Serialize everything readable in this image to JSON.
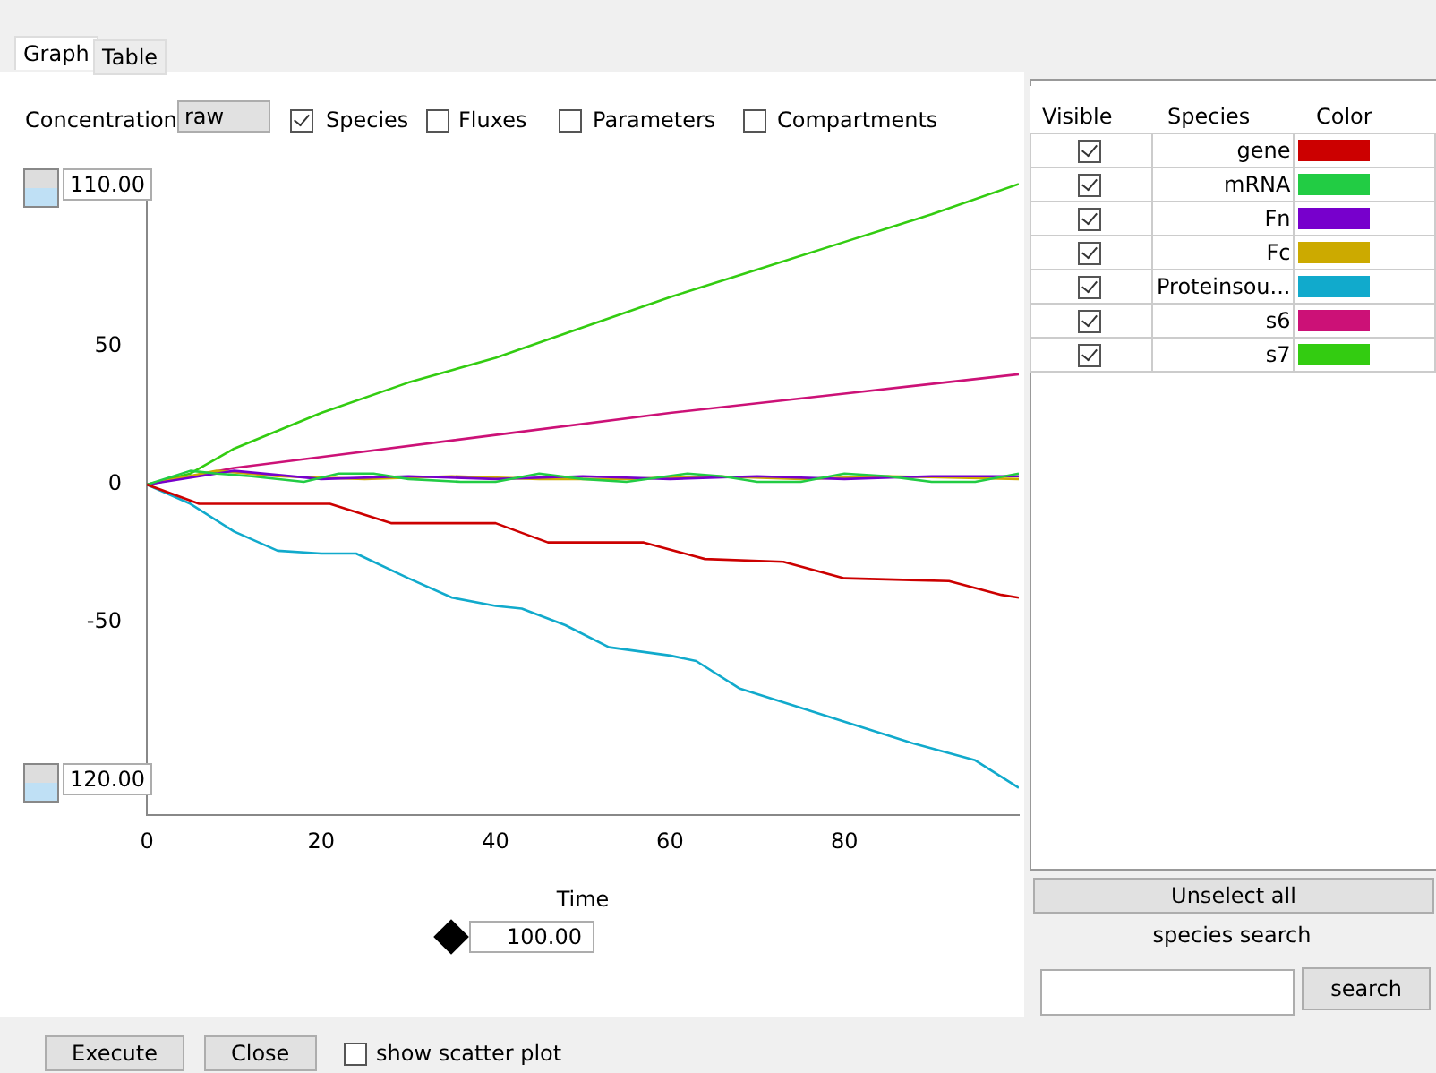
{
  "chart_data": {
    "type": "line",
    "xlabel": "Time",
    "xlim": [
      0,
      100
    ],
    "xticks": [
      0,
      20,
      40,
      60,
      80
    ],
    "ylim": [
      -120,
      110
    ],
    "yticks": [
      -50,
      0,
      50
    ],
    "grid": false,
    "legend": "right",
    "marker": "none",
    "line_style": "solid",
    "series": [
      {
        "name": "gene",
        "color": "#cc0000",
        "x": [
          0,
          6,
          21,
          28,
          40,
          46,
          57,
          64,
          73,
          80,
          92,
          98,
          100
        ],
        "values": [
          0,
          -7,
          -7,
          -14,
          -14,
          -21,
          -21,
          -27,
          -28,
          -34,
          -35,
          -40,
          -41
        ]
      },
      {
        "name": "mRNA",
        "color": "#22cc44",
        "x": [
          0,
          5,
          8,
          12,
          18,
          22,
          26,
          30,
          36,
          40,
          45,
          50,
          55,
          62,
          66,
          70,
          75,
          80,
          85,
          90,
          95,
          100
        ],
        "values": [
          0,
          5,
          4,
          3,
          1,
          4,
          4,
          2,
          1,
          1,
          4,
          2,
          1,
          4,
          3,
          1,
          1,
          4,
          3,
          1,
          1,
          4
        ]
      },
      {
        "name": "Fn",
        "color": "#7700cc",
        "x": [
          0,
          10,
          20,
          30,
          40,
          50,
          60,
          70,
          80,
          90,
          100
        ],
        "values": [
          0,
          5,
          2,
          3,
          2,
          3,
          2,
          3,
          2,
          3,
          3
        ]
      },
      {
        "name": "Fc",
        "color": "#ccaa00",
        "x": [
          0,
          8,
          15,
          25,
          35,
          45,
          55,
          65,
          75,
          85,
          100
        ],
        "values": [
          0,
          5,
          3,
          2,
          3,
          2,
          2,
          3,
          2,
          3,
          2
        ]
      },
      {
        "name": "Proteinsou...",
        "color": "#11aacc",
        "x": [
          0,
          5,
          10,
          15,
          20,
          24,
          30,
          35,
          40,
          43,
          48,
          53,
          60,
          63,
          68,
          75,
          80,
          88,
          95,
          100
        ],
        "values": [
          0,
          -7,
          -17,
          -24,
          -25,
          -25,
          -34,
          -41,
          -44,
          -45,
          -51,
          -59,
          -62,
          -64,
          -74,
          -81,
          -86,
          -94,
          -100,
          -110
        ]
      },
      {
        "name": "s6",
        "color": "#cc1177",
        "x": [
          0,
          10,
          20,
          40,
          60,
          80,
          100
        ],
        "values": [
          0,
          6,
          10,
          18,
          26,
          33,
          40
        ]
      },
      {
        "name": "s7",
        "color": "#33cc11",
        "x": [
          0,
          5,
          10,
          20,
          30,
          40,
          50,
          60,
          70,
          80,
          90,
          100
        ],
        "values": [
          0,
          4,
          13,
          26,
          37,
          46,
          57,
          68,
          78,
          88,
          98,
          109
        ]
      }
    ],
    "annotations": [
      "Graph",
      "Table",
      "Concentration",
      "raw",
      "Species",
      "Fluxes",
      "Parameters",
      "Compartments",
      "110.00",
      "120.00",
      "100.00",
      "Visible",
      "Species",
      "Color",
      "Unselect all",
      "species search",
      "search",
      "Execute",
      "Close",
      "show scatter plot"
    ]
  }
}
